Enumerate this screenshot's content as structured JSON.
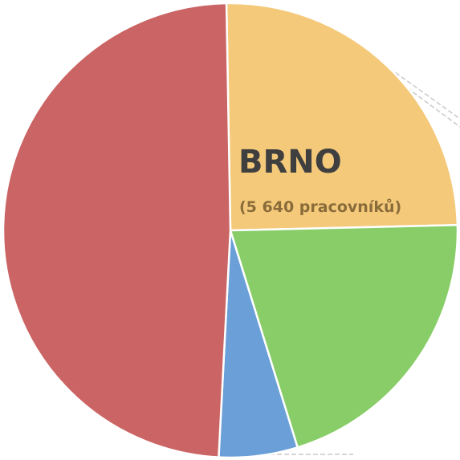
{
  "chart_data": {
    "type": "pie",
    "start_angle_deg": -1,
    "direction": "clockwise",
    "slices": [
      {
        "value": 24.9,
        "color": "#F4C97A"
      },
      {
        "value": 20.6,
        "color": "#88CD68"
      },
      {
        "value": 5.6,
        "color": "#6A9FD8"
      },
      {
        "value": 48.9,
        "color": "#CB6464"
      }
    ],
    "label": {
      "title": "BRNO",
      "subtitle": "(5 640 pracovníků)"
    }
  }
}
